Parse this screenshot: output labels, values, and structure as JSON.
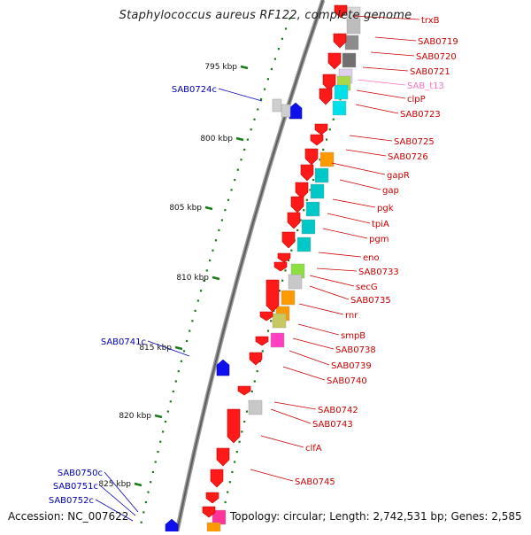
{
  "title": "Staphylococcus aureus RF122, complete genome",
  "footer": {
    "accession": "Accession: NC_007622",
    "topology": "Topology: circular; Length: 2,742,531 bp; Genes: 2,585"
  },
  "colors": {
    "forward_label": "#cc0000",
    "reverse_label": "#0000b3",
    "trna_label": "#ff70c0",
    "tick": "#1a7a1a",
    "backbone": "#7a7a7a"
  },
  "kbp_marks": [
    {
      "label": "795 kbp",
      "kbp": 795
    },
    {
      "label": "800 kbp",
      "kbp": 800
    },
    {
      "label": "805 kbp",
      "kbp": 805
    },
    {
      "label": "810 kbp",
      "kbp": 810
    },
    {
      "label": "815 kbp",
      "kbp": 815
    },
    {
      "label": "820 kbp",
      "kbp": 820
    },
    {
      "label": "825 kbp",
      "kbp": 825
    }
  ],
  "forward_labels": [
    {
      "text": "trxB",
      "color": "forward"
    },
    {
      "text": "SAB0719",
      "color": "forward"
    },
    {
      "text": "SAB0720",
      "color": "forward"
    },
    {
      "text": "SAB0721",
      "color": "forward"
    },
    {
      "text": "SAB_t13",
      "color": "trna"
    },
    {
      "text": "clpP",
      "color": "forward"
    },
    {
      "text": "SAB0723",
      "color": "forward"
    },
    {
      "text": "SAB0725",
      "color": "forward"
    },
    {
      "text": "SAB0726",
      "color": "forward"
    },
    {
      "text": "gapR",
      "color": "forward"
    },
    {
      "text": "gap",
      "color": "forward"
    },
    {
      "text": "pgk",
      "color": "forward"
    },
    {
      "text": "tpiA",
      "color": "forward"
    },
    {
      "text": "pgm",
      "color": "forward"
    },
    {
      "text": "eno",
      "color": "forward"
    },
    {
      "text": "SAB0733",
      "color": "forward"
    },
    {
      "text": "secG",
      "color": "forward"
    },
    {
      "text": "SAB0735",
      "color": "forward"
    },
    {
      "text": "rnr",
      "color": "forward"
    },
    {
      "text": "smpB",
      "color": "forward"
    },
    {
      "text": "SAB0738",
      "color": "forward"
    },
    {
      "text": "SAB0739",
      "color": "forward"
    },
    {
      "text": "SAB0740",
      "color": "forward"
    },
    {
      "text": "SAB0742",
      "color": "forward"
    },
    {
      "text": "SAB0743",
      "color": "forward"
    },
    {
      "text": "clfA",
      "color": "forward"
    },
    {
      "text": "SAB0745",
      "color": "forward"
    }
  ],
  "reverse_labels": [
    {
      "text": "SAB0724c"
    },
    {
      "text": "SAB0741c"
    },
    {
      "text": "SAB0750c"
    },
    {
      "text": "SAB0751c"
    },
    {
      "text": "SAB0752c"
    }
  ]
}
